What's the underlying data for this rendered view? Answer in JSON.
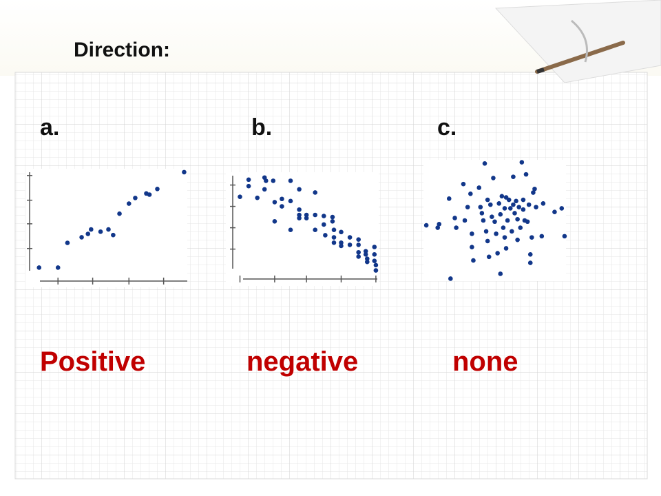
{
  "title": "Direction:",
  "panels": [
    {
      "letter": "a.",
      "label": "Positive"
    },
    {
      "letter": "b.",
      "label": "negative"
    },
    {
      "letter": "c.",
      "label": "none"
    }
  ],
  "chart_data": [
    {
      "type": "scatter",
      "color": "#12378a",
      "xlim": [
        0,
        100
      ],
      "ylim": [
        0,
        100
      ],
      "xticks": [
        18,
        40,
        63,
        85
      ],
      "yticks": [
        29,
        51,
        72,
        94
      ],
      "x": [
        6,
        18,
        24,
        33,
        37,
        39,
        45,
        50,
        53,
        57,
        63,
        67,
        74,
        76,
        81,
        98
      ],
      "y": [
        12,
        12,
        34,
        39,
        42,
        46,
        44,
        46,
        41,
        60,
        69,
        74,
        78,
        77,
        82,
        97
      ]
    },
    {
      "type": "scatter",
      "color": "#12378a",
      "xlim": [
        0,
        100
      ],
      "ylim": [
        0,
        100
      ],
      "xticks": [
        5,
        29,
        51,
        75,
        99
      ],
      "yticks": [
        28,
        48,
        68,
        88
      ],
      "x": [
        5,
        11,
        11,
        17,
        22,
        23,
        22,
        28,
        29,
        34,
        34,
        29,
        40,
        40,
        46,
        46,
        46,
        46,
        51,
        51,
        57,
        57,
        57,
        63,
        63,
        64,
        69,
        69,
        70,
        70,
        70,
        75,
        75,
        75,
        81,
        81,
        87,
        87,
        87,
        87,
        92,
        92,
        93,
        93,
        98,
        98,
        98,
        99,
        99,
        40
      ],
      "y": [
        77,
        93,
        87,
        76,
        95,
        92,
        84,
        92,
        72,
        75,
        68,
        54,
        92,
        73,
        84,
        65,
        60,
        57,
        60,
        57,
        81,
        60,
        46,
        59,
        51,
        41,
        58,
        54,
        46,
        39,
        34,
        44,
        34,
        31,
        39,
        32,
        37,
        32,
        25,
        21,
        26,
        23,
        19,
        16,
        30,
        23,
        17,
        13,
        8,
        46
      ]
    },
    {
      "type": "scatter",
      "color": "#12378a",
      "xlim": [
        0,
        100
      ],
      "ylim": [
        0,
        100
      ],
      "x": [
        2,
        10,
        11,
        19,
        18,
        22,
        23,
        28,
        29,
        31,
        33,
        34,
        34,
        35,
        39,
        40,
        41,
        42,
        43,
        44,
        45,
        45,
        46,
        47,
        48,
        49,
        50,
        51,
        52,
        53,
        54,
        54,
        55,
        56,
        57,
        57,
        58,
        58,
        59,
        60,
        61,
        62,
        63,
        63,
        64,
        65,
        66,
        66,
        67,
        68,
        69,
        70,
        70,
        71,
        72,
        73,
        74,
        75,
        75,
        76,
        77,
        78,
        79,
        83,
        84,
        92,
        97,
        99
      ],
      "y": [
        46,
        44,
        47,
        2,
        68,
        52,
        44,
        80,
        50,
        61,
        72,
        39,
        28,
        17,
        77,
        61,
        56,
        50,
        97,
        41,
        67,
        33,
        20,
        63,
        53,
        85,
        49,
        39,
        23,
        64,
        6,
        55,
        70,
        44,
        36,
        60,
        69,
        27,
        50,
        67,
        60,
        41,
        63,
        86,
        56,
        66,
        34,
        51,
        61,
        44,
        98,
        59,
        67,
        50,
        88,
        49,
        63,
        22,
        15,
        36,
        73,
        76,
        61,
        37,
        64,
        57,
        60,
        37
      ]
    }
  ]
}
